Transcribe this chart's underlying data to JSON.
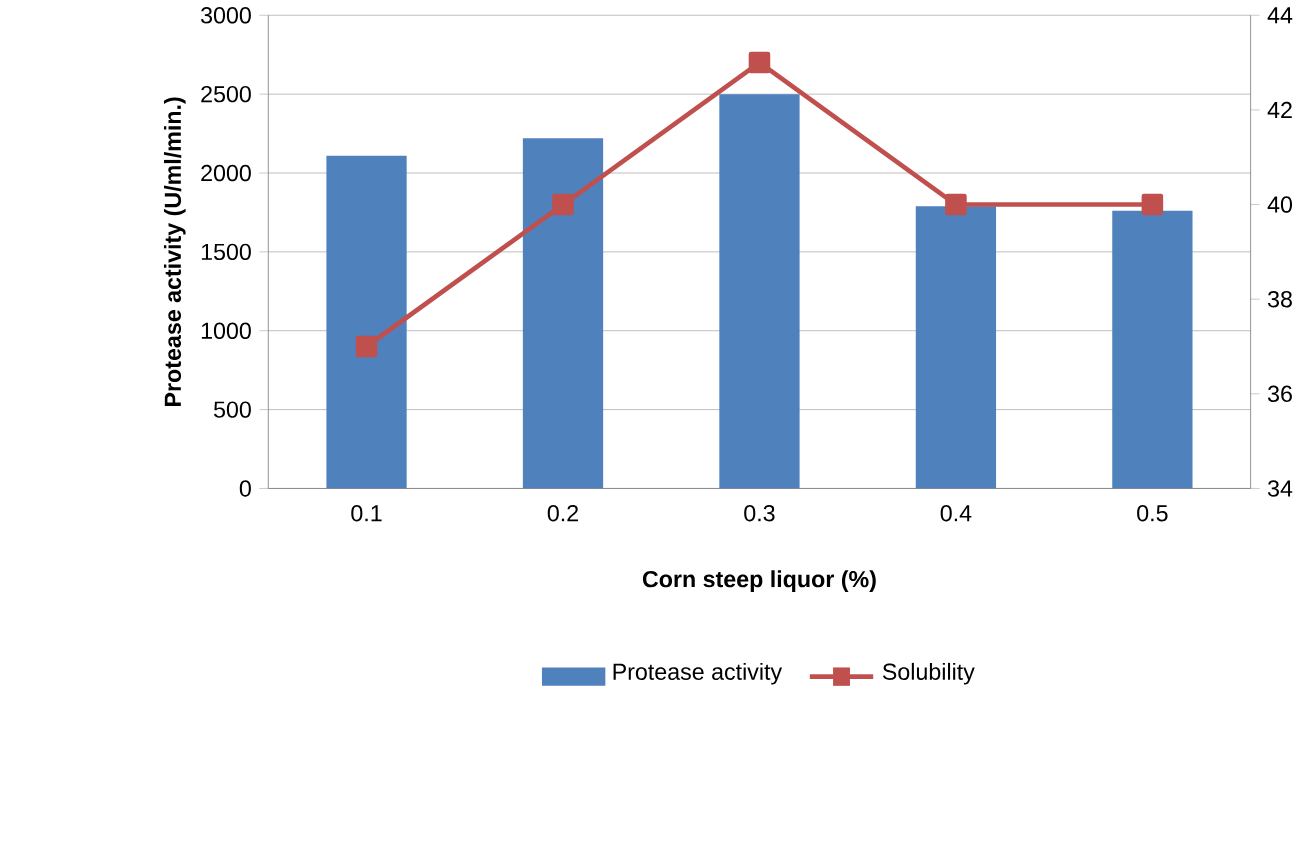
{
  "chart_data": {
    "type": "bar",
    "xlabel": "Corn steep liquor (%)",
    "ylabel": "Protease activity (U/ml/min.)",
    "categories": [
      "0.1",
      "0.2",
      "0.3",
      "0.4",
      "0.5"
    ],
    "series": [
      {
        "name": "Protease activity",
        "color": "#4f81bd",
        "values": [
          2110,
          2220,
          2500,
          1790,
          1760
        ]
      },
      {
        "name": "Solubility",
        "type": "line",
        "axis": "y2",
        "color": "#c0504d",
        "marker": "square",
        "values": [
          37,
          40,
          43,
          40,
          40
        ]
      }
    ],
    "ylim": [
      0,
      3000
    ],
    "yticks": [
      0,
      500,
      1000,
      1500,
      2000,
      2500,
      3000
    ],
    "y2lim": [
      34,
      44
    ],
    "y2ticks": [
      34,
      36,
      38,
      40,
      42,
      44
    ],
    "grid": "y",
    "legend": "bottom"
  }
}
